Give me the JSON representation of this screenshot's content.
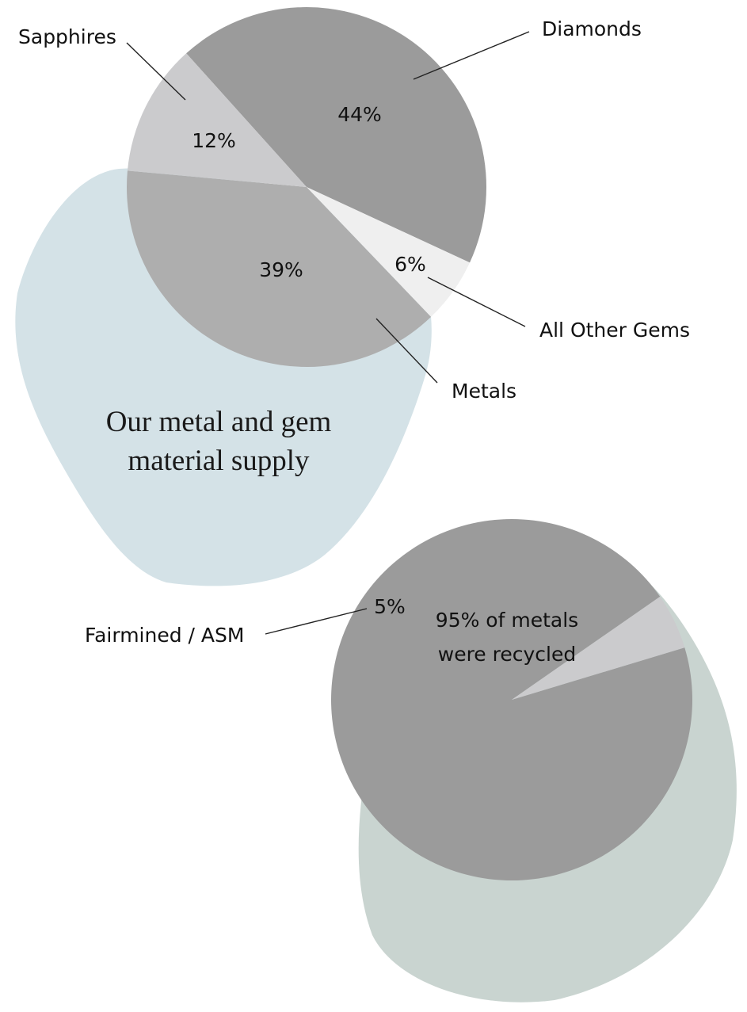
{
  "title_lines": [
    "Our metal and gem",
    "material supply"
  ],
  "colors": {
    "blob_top": "#d4e2e7",
    "blob_bottom": "#c9d4d0",
    "slice_dark": "#9b9b9b",
    "slice_mid": "#aeaeae",
    "slice_light": "#cbcbcd",
    "slice_lightest": "#efefef",
    "leader": "#222222"
  },
  "chart_data": [
    {
      "type": "pie",
      "slices": [
        {
          "label": "Diamonds",
          "value": 44,
          "value_label": "44%",
          "color": "#9b9b9b"
        },
        {
          "label": "All Other Gems",
          "value": 6,
          "value_label": "6%",
          "color": "#efefef"
        },
        {
          "label": "Metals",
          "value": 39,
          "value_label": "39%",
          "color": "#aeaeae"
        },
        {
          "label": "Sapphires",
          "value": 12,
          "value_label": "12%",
          "color": "#cbcbcd"
        }
      ]
    },
    {
      "type": "pie",
      "slices": [
        {
          "label": "",
          "value": 95,
          "value_label_lines": [
            "95% of metals",
            "were recycled"
          ],
          "color": "#9b9b9b"
        },
        {
          "label": "Fairmined / ASM",
          "value": 5,
          "value_label": "5%",
          "color": "#cbcbcd"
        }
      ]
    }
  ]
}
